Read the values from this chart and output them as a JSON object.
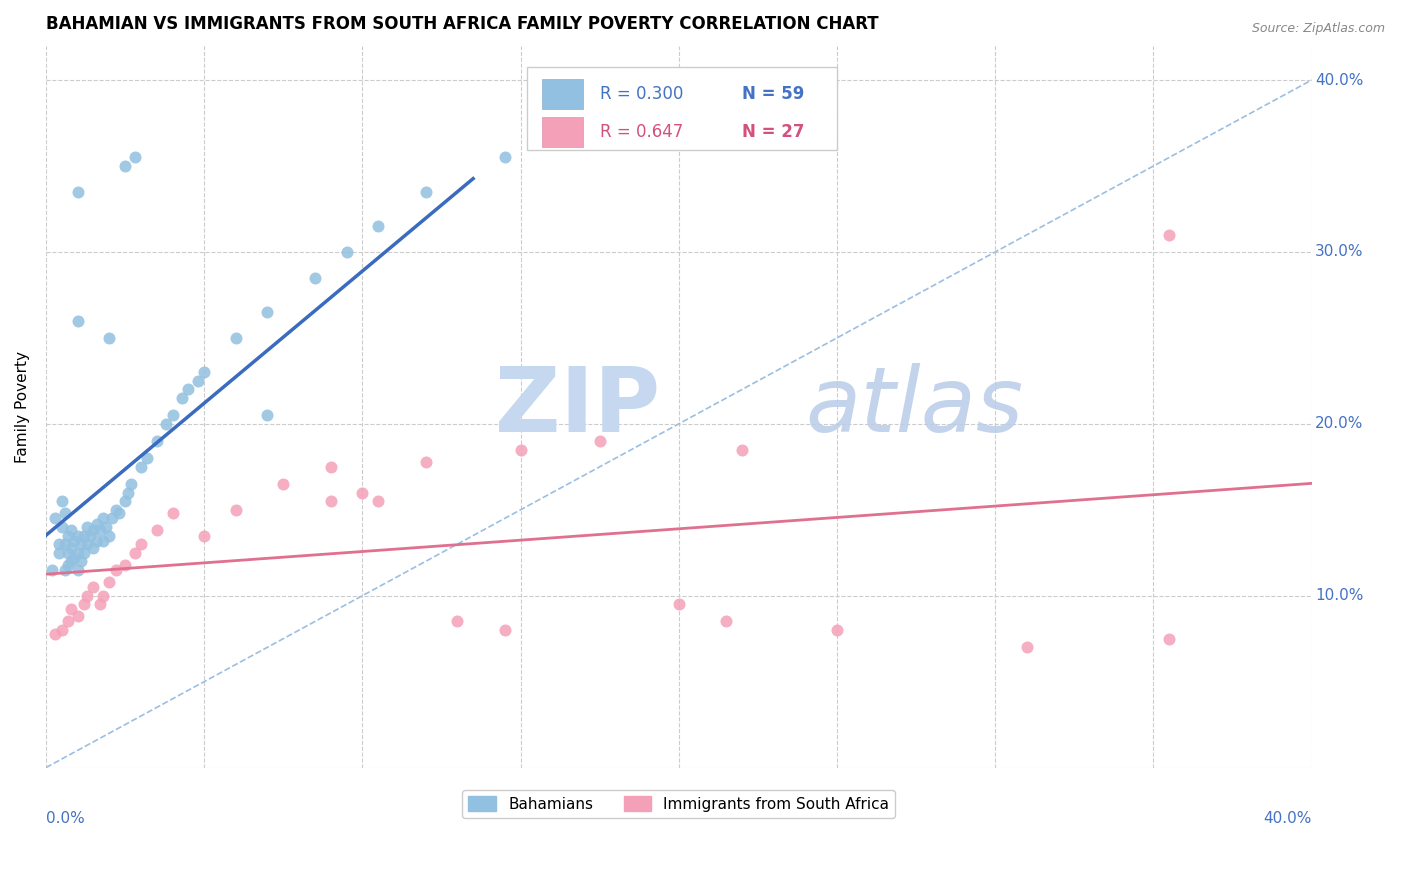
{
  "title": "BAHAMIAN VS IMMIGRANTS FROM SOUTH AFRICA FAMILY POVERTY CORRELATION CHART",
  "source": "Source: ZipAtlas.com",
  "ylabel": "Family Poverty",
  "xmin": 0.0,
  "xmax": 0.4,
  "ymin": 0.0,
  "ymax": 0.42,
  "color_blue": "#92c0e0",
  "color_pink": "#f4a0b8",
  "color_blue_line": "#3a6bbf",
  "color_pink_line": "#e07090",
  "color_blue_text": "#4472c4",
  "color_pink_text": "#d45080",
  "color_diag": "#9bbfe0",
  "legend_r1": "R = 0.300",
  "legend_n1": "N = 59",
  "legend_r2": "R = 0.647",
  "legend_n2": "N = 27",
  "bahamian_x": [
    0.002,
    0.003,
    0.004,
    0.004,
    0.005,
    0.005,
    0.006,
    0.006,
    0.006,
    0.007,
    0.007,
    0.007,
    0.008,
    0.008,
    0.008,
    0.009,
    0.009,
    0.01,
    0.01,
    0.01,
    0.011,
    0.011,
    0.012,
    0.012,
    0.013,
    0.013,
    0.014,
    0.015,
    0.015,
    0.016,
    0.016,
    0.017,
    0.018,
    0.018,
    0.019,
    0.02,
    0.021,
    0.022,
    0.023,
    0.025,
    0.026,
    0.027,
    0.03,
    0.032,
    0.035,
    0.038,
    0.04,
    0.043,
    0.045,
    0.048,
    0.05,
    0.06,
    0.07,
    0.085,
    0.095,
    0.105,
    0.12,
    0.145,
    0.2
  ],
  "bahamian_y": [
    0.115,
    0.145,
    0.125,
    0.13,
    0.155,
    0.14,
    0.115,
    0.13,
    0.148,
    0.118,
    0.125,
    0.135,
    0.12,
    0.128,
    0.138,
    0.122,
    0.132,
    0.115,
    0.125,
    0.135,
    0.12,
    0.13,
    0.125,
    0.135,
    0.13,
    0.14,
    0.135,
    0.128,
    0.138,
    0.132,
    0.142,
    0.138,
    0.132,
    0.145,
    0.14,
    0.135,
    0.145,
    0.15,
    0.148,
    0.155,
    0.16,
    0.165,
    0.175,
    0.18,
    0.19,
    0.2,
    0.205,
    0.215,
    0.22,
    0.225,
    0.23,
    0.25,
    0.265,
    0.285,
    0.3,
    0.315,
    0.335,
    0.355,
    0.375
  ],
  "south_africa_x": [
    0.003,
    0.005,
    0.007,
    0.008,
    0.01,
    0.012,
    0.013,
    0.015,
    0.017,
    0.018,
    0.02,
    0.022,
    0.025,
    0.028,
    0.03,
    0.035,
    0.04,
    0.05,
    0.06,
    0.075,
    0.09,
    0.105,
    0.12,
    0.15,
    0.175,
    0.22,
    0.355
  ],
  "south_africa_y": [
    0.078,
    0.08,
    0.085,
    0.092,
    0.088,
    0.095,
    0.1,
    0.105,
    0.095,
    0.1,
    0.108,
    0.115,
    0.118,
    0.125,
    0.13,
    0.138,
    0.148,
    0.135,
    0.15,
    0.165,
    0.175,
    0.155,
    0.178,
    0.185,
    0.19,
    0.185,
    0.31
  ],
  "extra_blue_high": [
    [
      0.01,
      0.335
    ],
    [
      0.025,
      0.35
    ],
    [
      0.028,
      0.355
    ],
    [
      0.07,
      0.205
    ],
    [
      0.01,
      0.26
    ],
    [
      0.02,
      0.25
    ]
  ],
  "extra_pink": [
    [
      0.09,
      0.155
    ],
    [
      0.1,
      0.16
    ],
    [
      0.13,
      0.085
    ],
    [
      0.145,
      0.08
    ],
    [
      0.2,
      0.095
    ],
    [
      0.215,
      0.085
    ],
    [
      0.25,
      0.08
    ],
    [
      0.31,
      0.07
    ],
    [
      0.355,
      0.075
    ]
  ]
}
